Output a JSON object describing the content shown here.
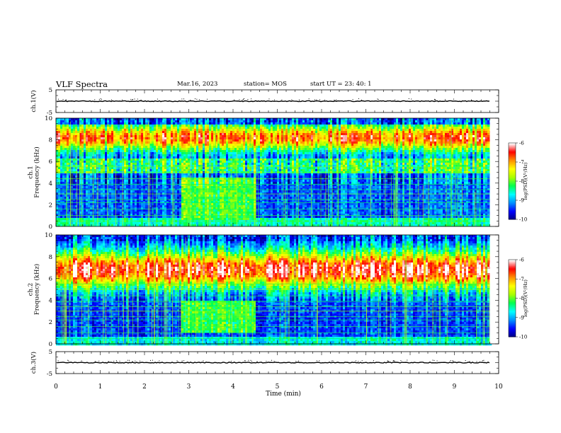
{
  "header": {
    "title": "VLF Spectra",
    "date": "Mar.16, 2023",
    "station": "station= MOS",
    "start_ut": "start  UT  =   23: 40: 1"
  },
  "chart_data": [
    {
      "id": "ch1-waveform",
      "type": "line",
      "ylabel": "ch.1(V)",
      "ylim": [
        -5,
        5
      ],
      "ytick_labels": [
        "5",
        "-5"
      ],
      "xlim": [
        0,
        10
      ],
      "baseline_v": 0
    },
    {
      "id": "ch1-spectrogram",
      "type": "heatmap",
      "ylabel": "ch.1\nFrequency (kHz)",
      "ylim": [
        0,
        10
      ],
      "ytick_labels": [
        "0",
        "2",
        "4",
        "6",
        "8",
        "10"
      ],
      "xlim": [
        0,
        10
      ],
      "data_extent_min": 9.8,
      "colorbar": {
        "label": "log(PSD)(V²/Hz)",
        "ticks": [
          "-6",
          "-7",
          "-8",
          "-9",
          "-10"
        ],
        "range": [
          -10,
          -6
        ]
      },
      "features": {
        "broadband_enhancement": {
          "t_start_min": 2.8,
          "t_end_min": 4.5,
          "f_low_khz": 0.5,
          "f_high_khz": 4.5
        },
        "dominant_band_khz": [
          6.5,
          9.5
        ],
        "quiet_band_khz": [
          1.0,
          5.0
        ]
      }
    },
    {
      "id": "ch2-spectrogram",
      "type": "heatmap",
      "ylabel": "ch.2\nFrequency (kHz)",
      "ylim": [
        0,
        10
      ],
      "ytick_labels": [
        "0",
        "2",
        "4",
        "6",
        "8",
        "10"
      ],
      "xlim": [
        0,
        10
      ],
      "data_extent_min": 9.8,
      "colorbar": {
        "label": "log(PSD)(V²/Hz)",
        "ticks": [
          "-6",
          "-7",
          "-8",
          "-9",
          "-10"
        ],
        "range": [
          -10,
          -6
        ]
      },
      "features": {
        "broadband_enhancement": {
          "t_start_min": 2.8,
          "t_end_min": 4.5,
          "f_low_khz": 1.0,
          "f_high_khz": 4.0
        },
        "dominant_band_khz": [
          4.5,
          9.5
        ]
      }
    },
    {
      "id": "ch3-waveform",
      "type": "line",
      "ylabel": "ch.3(V)",
      "ylim": [
        -5,
        5
      ],
      "ytick_labels": [
        "5",
        "-5"
      ],
      "xlim": [
        0,
        10
      ],
      "baseline_v": 0
    }
  ],
  "x_axis": {
    "label": "Time  (min)",
    "ticks": [
      "0",
      "1",
      "2",
      "3",
      "4",
      "5",
      "6",
      "7",
      "8",
      "9",
      "10"
    ]
  },
  "colors": {
    "colormap": [
      "#00007f",
      "#0000ff",
      "#0090ff",
      "#00ffff",
      "#00ff50",
      "#aaff00",
      "#ffff00",
      "#ff9000",
      "#ff0000",
      "#ffffff"
    ]
  }
}
